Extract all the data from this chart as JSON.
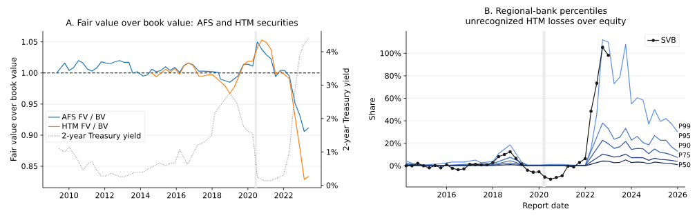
{
  "chart_data": [
    {
      "type": "line",
      "title": "A. Fair value over book value: AFS and HTM securities",
      "ylabel": "Fair value over book value",
      "y2label": "2-year Treasury yield",
      "xlim": [
        2008.54,
        2024.1
      ],
      "xticks": [
        2010,
        2012,
        2014,
        2016,
        2018,
        2020,
        2022
      ],
      "ylim": [
        0.8156,
        1.0674
      ],
      "yticks": [
        {
          "value": 0.85,
          "label": "0.85"
        },
        {
          "value": 0.9,
          "label": "0.90"
        },
        {
          "value": 0.95,
          "label": "0.95"
        },
        {
          "value": 1.0,
          "label": "1.00"
        },
        {
          "value": 1.05,
          "label": "1.05"
        }
      ],
      "y2lim": [
        -0.07,
        4.62
      ],
      "y2ticks": [
        {
          "value": 0,
          "label": "0%"
        },
        {
          "value": 1,
          "label": "1%"
        },
        {
          "value": 2,
          "label": "2%"
        },
        {
          "value": 3,
          "label": "3%"
        },
        {
          "value": 4,
          "label": "4%"
        }
      ],
      "grid": "y",
      "legend": "bottom left",
      "ref_lines": [
        {
          "axis": "y",
          "value": 1.0,
          "color": "#000000",
          "line_style": "dashed"
        }
      ],
      "bands": [
        {
          "axis": "x",
          "from": 2020.38,
          "to": 2020.5,
          "color": "#ebebeb"
        }
      ],
      "series": [
        {
          "name": "AFS FV / BV",
          "color": "#1f77b4",
          "x": [
            2009.31,
            2009.76,
            2010.01,
            2010.27,
            2010.53,
            2010.78,
            2011.04,
            2011.29,
            2011.55,
            2011.81,
            2012.06,
            2012.32,
            2012.58,
            2012.83,
            2013.09,
            2013.35,
            2013.56,
            2013.82,
            2014.14,
            2014.4,
            2014.63,
            2014.88,
            2015.14,
            2015.4,
            2015.65,
            2015.91,
            2016.19,
            2016.42,
            2016.68,
            2016.94,
            2017.26,
            2017.51,
            2017.99,
            2018.35,
            2018.47,
            2018.99,
            2019.44,
            2019.76,
            2020.01,
            2020.27,
            2020.53,
            2020.78,
            2021.04,
            2021.29,
            2021.55,
            2021.81,
            2022.06,
            2022.32,
            2022.64,
            2022.9,
            2023.15,
            2023.41
          ],
          "values": [
            1.0,
            1.016,
            1.004,
            1.009,
            1.02,
            1.016,
            1.006,
            1.003,
            1.008,
            1.018,
            1.016,
            1.015,
            1.018,
            1.02,
            1.017,
            1.017,
            1.0,
            1.002,
            0.995,
            0.997,
            1.006,
            1.002,
            1.004,
            1.01,
            1.004,
            1.009,
            1.001,
            1.012,
            1.016,
            1.013,
            1.003,
            1.003,
            1.002,
            1.001,
            0.99,
            0.985,
            0.995,
            1.014,
            1.014,
            1.011,
            1.05,
            1.038,
            1.029,
            1.023,
            0.994,
            1.004,
            1.004,
            0.995,
            0.951,
            0.932,
            0.906,
            0.912
          ]
        },
        {
          "name": "HTM FV / BV",
          "color": "#ff7f0e",
          "x": [
            2014.63,
            2014.88,
            2015.14,
            2015.4,
            2015.65,
            2015.91,
            2016.19,
            2016.42,
            2016.68,
            2016.94,
            2017.26,
            2017.51,
            2017.77,
            2018.03,
            2018.47,
            2018.73,
            2018.99,
            2019.24,
            2019.76,
            2020.01,
            2020.27,
            2020.53,
            2020.78,
            2021.04,
            2021.29,
            2021.55,
            2021.81,
            2022.06,
            2022.32,
            2022.64,
            2022.9,
            2023.15,
            2023.41
          ],
          "values": [
            1.0,
            0.994,
            1.0,
            1.006,
            1.001,
            1.007,
            0.998,
            1.011,
            1.016,
            1.012,
            0.995,
            0.995,
            0.997,
            0.997,
            0.986,
            0.979,
            0.967,
            0.977,
            1.013,
            1.019,
            1.019,
            1.041,
            1.053,
            1.049,
            1.038,
            0.998,
            1.003,
            0.997,
            0.991,
            0.929,
            0.88,
            0.829,
            0.834
          ]
        },
        {
          "name": "2-year Treasury yield",
          "color": "#9a9a9a",
          "line_style": "dotted",
          "axis": "y2",
          "x": [
            2009.44,
            2009.76,
            2010.01,
            2010.46,
            2010.78,
            2011.1,
            2011.29,
            2011.55,
            2011.81,
            2012.06,
            2012.38,
            2012.83,
            2013.09,
            2013.35,
            2013.67,
            2014.12,
            2014.63,
            2015.08,
            2015.4,
            2015.65,
            2015.91,
            2016.19,
            2016.62,
            2017.19,
            2017.51,
            2017.96,
            2018.15,
            2018.54,
            2018.99,
            2019.37,
            2019.76,
            2020.01,
            2020.27,
            2020.53,
            2020.91,
            2021.29,
            2021.62,
            2022.0,
            2022.32,
            2022.64,
            2022.9,
            2023.15,
            2023.41
          ],
          "values": [
            1.1,
            1.0,
            1.14,
            0.79,
            0.46,
            0.66,
            0.72,
            0.45,
            0.28,
            0.28,
            0.36,
            0.26,
            0.26,
            0.31,
            0.39,
            0.39,
            0.55,
            0.67,
            0.59,
            0.66,
            0.66,
            1.07,
            0.62,
            1.21,
            1.28,
            1.48,
            2.17,
            2.45,
            2.76,
            2.48,
            1.76,
            1.62,
            1.55,
            0.24,
            0.14,
            0.14,
            0.21,
            0.31,
            1.0,
            2.86,
            3.9,
            4.24,
            4.41
          ]
        }
      ]
    },
    {
      "type": "line",
      "title": "B. Regional-bank percentiles",
      "subtitle": "unrecognized HTM losses over equity",
      "xlabel": "Report date",
      "ylabel": "Share",
      "xlim": [
        2014.25,
        2026.33
      ],
      "xticks": [
        2016,
        2018,
        2020,
        2022,
        2024,
        2026
      ],
      "ylim": [
        -18.8,
        119.8
      ],
      "yticks": [
        {
          "value": 0,
          "label": "0%"
        },
        {
          "value": 20,
          "label": "20%"
        },
        {
          "value": 40,
          "label": "40%"
        },
        {
          "value": 60,
          "label": "60%"
        },
        {
          "value": 80,
          "label": "80%"
        },
        {
          "value": 100,
          "label": "100%"
        }
      ],
      "grid": "y",
      "legend": "top right",
      "bands": [
        {
          "axis": "x",
          "from": 2020.15,
          "to": 2020.28,
          "color": "#ebebeb"
        }
      ],
      "series": [
        {
          "name": "P99",
          "color": "#5b8fdc",
          "marker": "none",
          "x": [
            2014.25,
            2014.5,
            2015.0,
            2015.75,
            2016.25,
            2016.75,
            2017.25,
            2017.5,
            2018.0,
            2018.25,
            2018.75,
            2019.25,
            2019.5,
            2020.0,
            2020.5,
            2021.0,
            2021.5,
            2022.0,
            2022.25,
            2022.5,
            2022.75,
            2023.0,
            2023.25,
            2023.5,
            2023.75,
            2024.0,
            2024.25,
            2024.5,
            2024.75,
            2025.0,
            2025.25,
            2025.5,
            2025.75,
            2026.0
          ],
          "values": [
            4.3,
            2.2,
            0.8,
            1.8,
            3.3,
            3.3,
            5.1,
            2.7,
            3.9,
            10.8,
            18.6,
            3.3,
            0.8,
            0.8,
            1.2,
            1.2,
            0.6,
            0.6,
            15,
            46,
            112,
            110,
            73,
            79,
            108,
            55,
            60.5,
            58.5,
            37,
            50,
            39.5,
            42,
            37,
            30
          ]
        },
        {
          "name": "P95",
          "color": "#4474c4",
          "marker": "none",
          "x": [
            2014.25,
            2015.0,
            2016.0,
            2017.0,
            2018.0,
            2018.75,
            2019.5,
            2022.0,
            2022.75,
            2023.0,
            2023.25,
            2023.5,
            2023.75,
            2024.0,
            2024.25,
            2024.5,
            2024.75,
            2025.0,
            2025.25,
            2025.5,
            2025.75,
            2026.0
          ],
          "values": [
            2.5,
            0.5,
            0.5,
            1.5,
            2.0,
            7.5,
            0.5,
            0.5,
            38,
            33,
            23.7,
            25.4,
            33.3,
            22.7,
            26.2,
            20.7,
            18.6,
            26.8,
            22.7,
            22.7,
            16.6,
            12.9
          ]
        },
        {
          "name": "P90",
          "color": "#3059a6",
          "marker": "none",
          "x": [
            2014.25,
            2015.0,
            2018.0,
            2018.75,
            2019.5,
            2022.0,
            2022.75,
            2023.0,
            2023.25,
            2023.5,
            2023.75,
            2024.0,
            2024.25,
            2024.5,
            2024.75,
            2025.0,
            2025.25,
            2025.5,
            2025.75,
            2026.0
          ],
          "values": [
            1.5,
            0,
            1,
            4.5,
            0,
            0.3,
            22.7,
            19.6,
            15.5,
            17,
            21.7,
            14.5,
            15.5,
            15.1,
            10.8,
            14.9,
            11.9,
            11.2,
            9.4,
            7.4
          ]
        },
        {
          "name": "P75",
          "color": "#243f82",
          "marker": "none",
          "x": [
            2014.25,
            2015.0,
            2018.0,
            2018.75,
            2019.5,
            2022.0,
            2022.75,
            2023.0,
            2023.25,
            2023.5,
            2023.75,
            2024.0,
            2024.25,
            2024.5,
            2024.75,
            2025.0,
            2025.25,
            2025.5,
            2025.75,
            2026.0
          ],
          "values": [
            0.8,
            0,
            0.5,
            2.5,
            0,
            0.2,
            10.4,
            9.2,
            7.8,
            8.4,
            10.4,
            7.2,
            7.4,
            7.2,
            4.9,
            6.7,
            5.7,
            5.3,
            4.7,
            3.9
          ]
        },
        {
          "name": "P50",
          "color": "#172a5c",
          "marker": "none",
          "x": [
            2014.25,
            2015.0,
            2018.0,
            2018.75,
            2019.5,
            2022.0,
            2022.75,
            2023.0,
            2023.25,
            2023.5,
            2023.75,
            2024.0,
            2024.25,
            2024.5,
            2024.75,
            2025.0,
            2025.25,
            2025.5,
            2025.75,
            2026.0
          ],
          "values": [
            0.3,
            0,
            0.2,
            1.0,
            0,
            0,
            4.3,
            4.1,
            2.7,
            3.1,
            5.3,
            2.9,
            3.3,
            3.1,
            1.8,
            3.3,
            2.7,
            2.2,
            1.8,
            1.0
          ]
        },
        {
          "name": "SVB",
          "color": "#1a1a1a",
          "marker": "circle",
          "x": [
            2014.25,
            2014.5,
            2014.75,
            2015.0,
            2015.25,
            2015.5,
            2015.75,
            2016.0,
            2016.25,
            2016.5,
            2016.75,
            2017.0,
            2017.25,
            2017.5,
            2017.75,
            2018.0,
            2018.25,
            2018.5,
            2018.75,
            2019.0,
            2019.25,
            2019.5,
            2019.75,
            2020.0,
            2020.25,
            2020.5,
            2020.75,
            2021.0,
            2021.25,
            2021.5,
            2021.75,
            2022.0,
            2022.25,
            2022.5,
            2022.75,
            2023.0
          ],
          "values": [
            0,
            0,
            2.2,
            0,
            -1.8,
            0.2,
            -1.8,
            1.0,
            -2.2,
            -3.5,
            -2.7,
            1.2,
            1.2,
            0.8,
            0.8,
            2.9,
            8.2,
            10,
            12.5,
            6.6,
            1.2,
            -3.9,
            -5.7,
            -5.3,
            -10,
            -11.9,
            -10.4,
            -8.8,
            -0.4,
            -1.0,
            2.9,
            6.3,
            48.5,
            73.4,
            105.3,
            98.2
          ]
        }
      ]
    }
  ]
}
